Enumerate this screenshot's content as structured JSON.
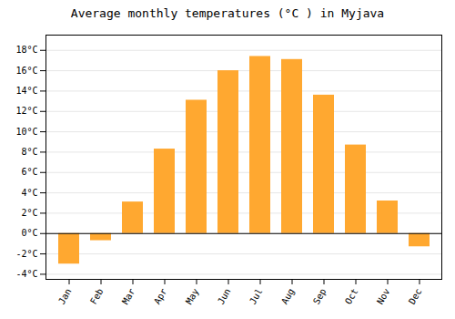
{
  "chart_data": {
    "type": "bar",
    "title": "Average monthly temperatures (°C ) in Myjava",
    "categories": [
      "Jan",
      "Feb",
      "Mar",
      "Apr",
      "May",
      "Jun",
      "Jul",
      "Aug",
      "Sep",
      "Oct",
      "Nov",
      "Dec"
    ],
    "values": [
      -3.0,
      -0.7,
      3.1,
      8.3,
      13.1,
      16.0,
      17.4,
      17.1,
      13.6,
      8.7,
      3.2,
      -1.3
    ],
    "color": "#FFA830",
    "ylim": [
      -4.5,
      19.5
    ],
    "yticks": [
      {
        "value": -4,
        "label": "-4°C"
      },
      {
        "value": -2,
        "label": "-2°C"
      },
      {
        "value": 0,
        "label": "0°C"
      },
      {
        "value": 2,
        "label": "2°C"
      },
      {
        "value": 4,
        "label": "4°C"
      },
      {
        "value": 6,
        "label": "6°C"
      },
      {
        "value": 8,
        "label": "8°C"
      },
      {
        "value": 10,
        "label": "10°C"
      },
      {
        "value": 12,
        "label": "12°C"
      },
      {
        "value": 14,
        "label": "14°C"
      },
      {
        "value": 16,
        "label": "16°C"
      },
      {
        "value": 18,
        "label": "18°C"
      }
    ],
    "grid": true
  }
}
